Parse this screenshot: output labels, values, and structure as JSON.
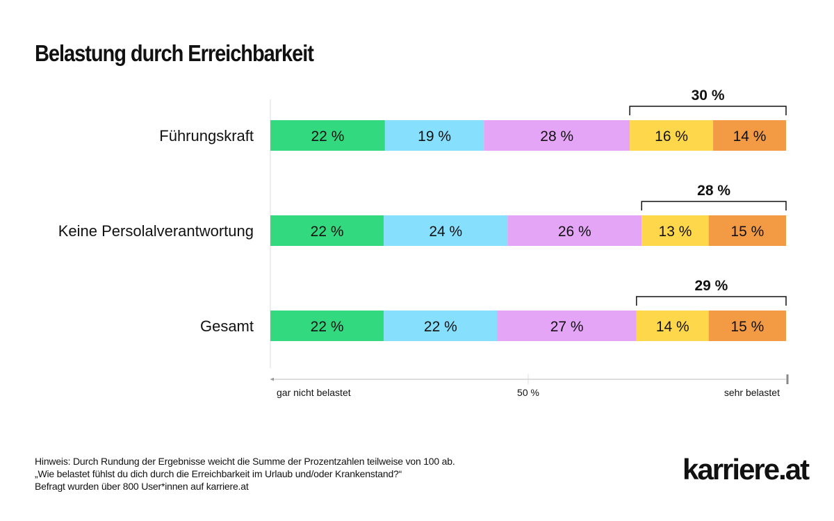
{
  "chart_data": {
    "type": "bar",
    "orientation": "horizontal",
    "stacked": true,
    "title": "Belastung durch Erreichbarkeit",
    "categories": [
      "Führungskraft",
      "Keine Persolalverantwortung",
      "Gesamt"
    ],
    "segment_colors": [
      "#33d97f",
      "#85dffd",
      "#e4a5f7",
      "#ffd74a",
      "#f39a44"
    ],
    "values": [
      [
        22,
        19,
        28,
        16,
        14
      ],
      [
        22,
        24,
        26,
        13,
        15
      ],
      [
        22,
        22,
        27,
        14,
        15
      ]
    ],
    "bracket_totals": [
      30,
      28,
      29
    ],
    "value_suffix": " %",
    "axis": {
      "left_label": "gar nicht belastet",
      "mid_label": "50 %",
      "right_label": "sehr belastet"
    }
  },
  "footer": {
    "note": "Hinweis: Durch Rundung der Ergebnisse weicht die Summe der Prozentzahlen teilweise von 100 ab.",
    "question": "„Wie belastet fühlst du dich durch die Erreichbarkeit im Urlaub und/oder Krankenstand?“",
    "sample": "Befragt wurden über 800 User*innen auf karriere.at"
  },
  "logo": "karriere.at"
}
